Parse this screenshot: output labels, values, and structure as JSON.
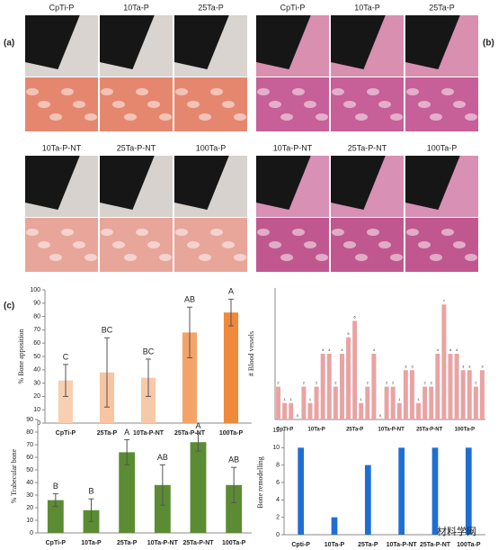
{
  "panels": {
    "a": "(a)",
    "b": "(b)",
    "c": "(c)",
    "a_labels": [
      "CpTi-P",
      "10Ta-P",
      "25Ta-P",
      "10Ta-P-NT",
      "25Ta-P-NT",
      "100Ta-P"
    ],
    "b_labels": [
      "CpTi-P",
      "10Ta-P",
      "25Ta-P",
      "10Ta-P-NT",
      "25Ta-P-NT",
      "100Ta-P"
    ],
    "watermark": "材料学网"
  },
  "chart_data": [
    {
      "type": "bar",
      "ylabel": "% Bone apposition",
      "categories": [
        "CpTi-P",
        "25Ta-P",
        "10Ta-P-NT",
        "25Ta-P-NT",
        "100Ta-P"
      ],
      "values": [
        32,
        38,
        34,
        68,
        83
      ],
      "errors": [
        12,
        26,
        14,
        19,
        10
      ],
      "letters": [
        "C",
        "BC",
        "BC",
        "AB",
        "A"
      ],
      "colors": [
        "#f8cfb0",
        "#f8c5a2",
        "#f7c9a9",
        "#f4a368",
        "#ef8a3c"
      ],
      "ylim": [
        0,
        100
      ],
      "yticks": [
        0,
        10,
        20,
        30,
        40,
        50,
        60,
        70,
        80,
        90,
        100
      ]
    },
    {
      "type": "bar",
      "ylabel": "# Blood vessels",
      "categories": [
        "CpTi-P",
        null,
        null,
        null,
        null,
        "10Ta-P",
        null,
        null,
        null,
        null,
        null,
        "25Ta-P",
        null,
        null,
        null,
        null,
        "10Ta-P-NT",
        null,
        null,
        null,
        null,
        null,
        "25Ta-P-NT",
        null,
        null,
        null,
        null,
        null,
        "100Ta-P",
        null,
        null,
        null,
        null
      ],
      "values": [
        2,
        1,
        1,
        0,
        2,
        1,
        2,
        4,
        4,
        2,
        4,
        5,
        6,
        1,
        2,
        4,
        0,
        2,
        2,
        1,
        3,
        3,
        1,
        2,
        2,
        4,
        7,
        4,
        4,
        3,
        3,
        2,
        3
      ],
      "color": "#e9a3a3",
      "ylim": [
        0,
        8
      ]
    },
    {
      "type": "bar",
      "ylabel": "% Trabecular bone",
      "categories": [
        "CpTi-P",
        "10Ta-P",
        "25Ta-P",
        "10Ta-P-NT",
        "25Ta-P-NT",
        "100Ta-P"
      ],
      "values": [
        26,
        18,
        64,
        38,
        72,
        38
      ],
      "errors": [
        5,
        9,
        10,
        16,
        7,
        14
      ],
      "letters": [
        "B",
        "B",
        "A",
        "AB",
        "A",
        "AB"
      ],
      "color": "#5b8c33",
      "ylim": [
        0,
        90
      ],
      "yticks": [
        0,
        10,
        20,
        30,
        40,
        50,
        60,
        70,
        80,
        90
      ]
    },
    {
      "type": "bar",
      "ylabel": "Bone remodelling",
      "categories": [
        "Cpti-P",
        "10Ta-P",
        "25Ta-P",
        "10Ta-P-NT",
        "25Ta-P-NT",
        "100Ta-P"
      ],
      "values": [
        10,
        2,
        8,
        10,
        10,
        10
      ],
      "color": "#1f6fd3",
      "ylim": [
        0,
        12
      ],
      "yticks": [
        0,
        2,
        4,
        6,
        8,
        10,
        12
      ]
    }
  ]
}
